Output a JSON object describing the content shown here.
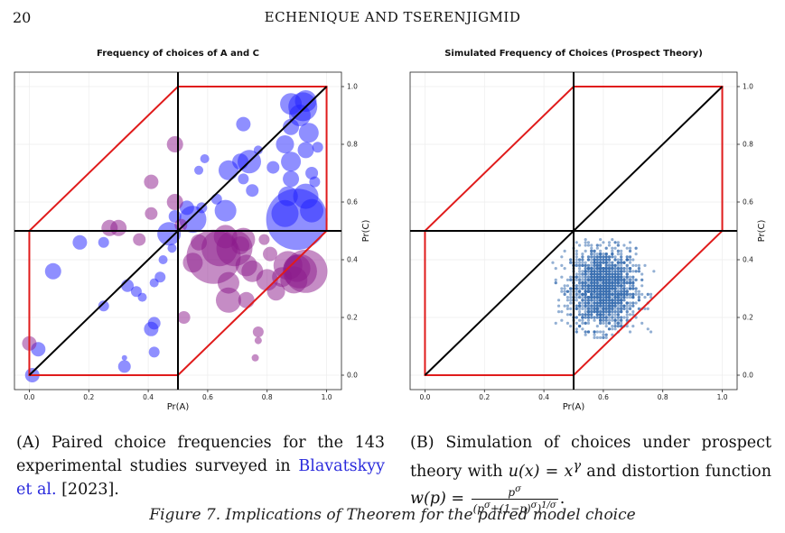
{
  "page": {
    "number": "20",
    "running_head": "ECHENIQUE AND TSERENJIGMID",
    "footer_text": "Figure 7. Implications of Theorem for the paired model choice"
  },
  "captions": {
    "a": {
      "label": "(A)",
      "text_before_link": " Paired choice frequencies for the 143 experimental studies surveyed in ",
      "link": "Blavatskyy et al.",
      "text_after_link": " [2023]."
    },
    "b": {
      "label": "(B)",
      "text_1": " Simulation of choices under prospect theory with ",
      "math_1": "u(x) = x",
      "sup_1": "γ",
      "text_2": " and distortion function ",
      "math_2": "w(p) = ",
      "frac_num": "p^σ",
      "frac_den": "(p^σ+(1−p)^σ)^{1/σ}",
      "text_3": "."
    }
  },
  "chart_data": [
    {
      "type": "scatter",
      "title": "Frequency of choices of A and C",
      "xlabel": "Pr(A)",
      "ylabel": "Pr(C)",
      "xlim": [
        -0.05,
        1.05
      ],
      "ylim": [
        -0.05,
        1.05
      ],
      "xticks": [
        "0.0",
        "0.2",
        "0.4",
        "0.6",
        "0.8",
        "1.0"
      ],
      "yticks": [
        "0.0",
        "0.2",
        "0.4",
        "0.6",
        "0.8",
        "1.0"
      ],
      "grid": true,
      "colors": {
        "blue": "#1f1fff",
        "purple": "#8b1a8b",
        "red": "#e01b1b",
        "black": "#000000"
      },
      "red_polygon": [
        [
          0,
          0
        ],
        [
          0.5,
          0
        ],
        [
          1,
          0.5
        ],
        [
          1,
          1
        ],
        [
          0.5,
          1
        ],
        [
          0,
          0.5
        ]
      ],
      "reference_lines": {
        "vline_x": 0.5,
        "hline_y": 0.5,
        "diagonal": [
          [
            0,
            0
          ],
          [
            1,
            1
          ]
        ]
      },
      "series": [
        {
          "color": "blue",
          "points": [
            [
              0.01,
              0.0,
              8
            ],
            [
              0.03,
              0.09,
              8
            ],
            [
              0.08,
              0.36,
              9
            ],
            [
              0.17,
              0.46,
              8
            ],
            [
              0.25,
              0.24,
              6
            ],
            [
              0.25,
              0.46,
              6
            ],
            [
              0.32,
              0.03,
              7
            ],
            [
              0.32,
              0.06,
              3
            ],
            [
              0.33,
              0.31,
              7
            ],
            [
              0.36,
              0.29,
              6
            ],
            [
              0.38,
              0.27,
              5
            ],
            [
              0.41,
              0.16,
              8
            ],
            [
              0.42,
              0.18,
              7
            ],
            [
              0.42,
              0.08,
              6
            ],
            [
              0.42,
              0.32,
              5
            ],
            [
              0.44,
              0.34,
              6
            ],
            [
              0.45,
              0.4,
              5
            ],
            [
              0.47,
              0.49,
              13
            ],
            [
              0.48,
              0.44,
              5
            ],
            [
              0.49,
              0.55,
              7
            ],
            [
              0.53,
              0.58,
              8
            ],
            [
              0.55,
              0.54,
              15
            ],
            [
              0.58,
              0.58,
              6
            ],
            [
              0.57,
              0.71,
              5
            ],
            [
              0.59,
              0.75,
              5
            ],
            [
              0.63,
              0.61,
              6
            ],
            [
              0.66,
              0.57,
              12
            ],
            [
              0.67,
              0.71,
              11
            ],
            [
              0.71,
              0.74,
              9
            ],
            [
              0.72,
              0.87,
              8
            ],
            [
              0.72,
              0.68,
              6
            ],
            [
              0.74,
              0.74,
              13
            ],
            [
              0.75,
              0.64,
              7
            ],
            [
              0.77,
              0.78,
              5
            ],
            [
              0.82,
              0.72,
              7
            ],
            [
              0.86,
              0.8,
              10
            ],
            [
              0.86,
              0.56,
              15
            ],
            [
              0.87,
              0.62,
              11
            ],
            [
              0.88,
              0.68,
              9
            ],
            [
              0.88,
              0.74,
              11
            ],
            [
              0.88,
              0.94,
              12
            ],
            [
              0.88,
              0.86,
              9
            ],
            [
              0.9,
              0.54,
              34
            ],
            [
              0.91,
              0.9,
              12
            ],
            [
              0.93,
              0.95,
              12
            ],
            [
              0.93,
              0.78,
              9
            ],
            [
              0.94,
              0.84,
              11
            ],
            [
              0.95,
              0.57,
              13
            ],
            [
              0.95,
              0.7,
              7
            ],
            [
              0.96,
              0.67,
              6
            ],
            [
              0.97,
              0.79,
              6
            ],
            [
              0.93,
              0.62,
              14
            ],
            [
              0.92,
              0.93,
              16
            ]
          ]
        },
        {
          "color": "purple",
          "points": [
            [
              0.0,
              0.11,
              8
            ],
            [
              0.27,
              0.51,
              9
            ],
            [
              0.3,
              0.51,
              9
            ],
            [
              0.37,
              0.47,
              7
            ],
            [
              0.41,
              0.56,
              7
            ],
            [
              0.41,
              0.67,
              8
            ],
            [
              0.49,
              0.8,
              9
            ],
            [
              0.49,
              0.6,
              9
            ],
            [
              0.51,
              0.52,
              7
            ],
            [
              0.52,
              0.2,
              7
            ],
            [
              0.55,
              0.39,
              11
            ],
            [
              0.57,
              0.46,
              9
            ],
            [
              0.62,
              0.41,
              30
            ],
            [
              0.64,
              0.44,
              20
            ],
            [
              0.66,
              0.48,
              13
            ],
            [
              0.67,
              0.32,
              12
            ],
            [
              0.67,
              0.26,
              14
            ],
            [
              0.69,
              0.44,
              20
            ],
            [
              0.71,
              0.45,
              10
            ],
            [
              0.72,
              0.47,
              13
            ],
            [
              0.73,
              0.38,
              12
            ],
            [
              0.73,
              0.26,
              9
            ],
            [
              0.75,
              0.36,
              12
            ],
            [
              0.77,
              0.15,
              6
            ],
            [
              0.77,
              0.12,
              4
            ],
            [
              0.76,
              0.06,
              4
            ],
            [
              0.79,
              0.47,
              6
            ],
            [
              0.8,
              0.33,
              12
            ],
            [
              0.81,
              0.42,
              8
            ],
            [
              0.83,
              0.29,
              10
            ],
            [
              0.85,
              0.34,
              11
            ],
            [
              0.87,
              0.38,
              16
            ],
            [
              0.89,
              0.33,
              15
            ],
            [
              0.9,
              0.37,
              15
            ],
            [
              0.91,
              0.36,
              19
            ],
            [
              0.93,
              0.36,
              24
            ]
          ]
        }
      ]
    },
    {
      "type": "scatter",
      "title": "Simulated Frequency of Choices (Prospect Theory)",
      "xlabel": "Pr(A)",
      "ylabel": "Pr(C)",
      "xlim": [
        -0.05,
        1.05
      ],
      "ylim": [
        -0.05,
        1.05
      ],
      "xticks": [
        "0.0",
        "0.2",
        "0.4",
        "0.6",
        "0.8",
        "1.0"
      ],
      "yticks": [
        "0.0",
        "0.2",
        "0.4",
        "0.6",
        "0.8",
        "1.0"
      ],
      "grid": true,
      "colors": {
        "dots": "#3b6fb0",
        "red": "#e01b1b",
        "black": "#000000"
      },
      "red_polygon": [
        [
          0,
          0
        ],
        [
          0.5,
          0
        ],
        [
          1,
          0.5
        ],
        [
          1,
          1
        ],
        [
          0.5,
          1
        ],
        [
          0,
          0.5
        ]
      ],
      "reference_lines": {
        "vline_x": 0.5,
        "hline_y": 0.5,
        "diagonal": [
          [
            0,
            0
          ],
          [
            1,
            1
          ]
        ]
      },
      "cloud": {
        "center": [
          0.6,
          0.3
        ],
        "spread": [
          0.055,
          0.07
        ],
        "range_x": [
          0.42,
          0.78
        ],
        "range_y": [
          0.13,
          0.47
        ]
      }
    }
  ]
}
